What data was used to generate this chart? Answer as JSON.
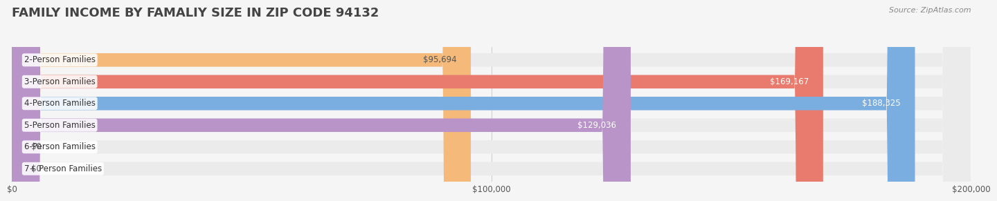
{
  "title": "FAMILY INCOME BY FAMALIY SIZE IN ZIP CODE 94132",
  "source": "Source: ZipAtlas.com",
  "categories": [
    "2-Person Families",
    "3-Person Families",
    "4-Person Families",
    "5-Person Families",
    "6-Person Families",
    "7+ Person Families"
  ],
  "values": [
    95694,
    169167,
    188325,
    129036,
    0,
    0
  ],
  "bar_colors": [
    "#f5b97a",
    "#e87b6e",
    "#7aade0",
    "#b894c8",
    "#5ec4b0",
    "#b0b8e8"
  ],
  "label_colors": [
    "#555555",
    "#ffffff",
    "#ffffff",
    "#ffffff",
    "#555555",
    "#555555"
  ],
  "xlim": [
    0,
    200000
  ],
  "xticks": [
    0,
    100000,
    200000
  ],
  "xticklabels": [
    "$0",
    "$100,000",
    "$200,000"
  ],
  "bg_color": "#f5f5f5",
  "bar_bg_color": "#ebebeb",
  "title_fontsize": 13,
  "label_fontsize": 8.5,
  "value_fontsize": 8.5,
  "source_fontsize": 8,
  "bar_height": 0.62
}
